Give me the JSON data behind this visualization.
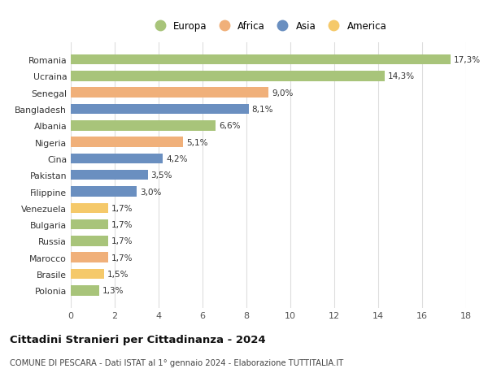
{
  "countries": [
    "Romania",
    "Ucraina",
    "Senegal",
    "Bangladesh",
    "Albania",
    "Nigeria",
    "Cina",
    "Pakistan",
    "Filippine",
    "Venezuela",
    "Bulgaria",
    "Russia",
    "Marocco",
    "Brasile",
    "Polonia"
  ],
  "values": [
    17.3,
    14.3,
    9.0,
    8.1,
    6.6,
    5.1,
    4.2,
    3.5,
    3.0,
    1.7,
    1.7,
    1.7,
    1.7,
    1.5,
    1.3
  ],
  "labels": [
    "17,3%",
    "14,3%",
    "9,0%",
    "8,1%",
    "6,6%",
    "5,1%",
    "4,2%",
    "3,5%",
    "3,0%",
    "1,7%",
    "1,7%",
    "1,7%",
    "1,7%",
    "1,5%",
    "1,3%"
  ],
  "continents": [
    "Europa",
    "Europa",
    "Africa",
    "Asia",
    "Europa",
    "Africa",
    "Asia",
    "Asia",
    "Asia",
    "America",
    "Europa",
    "Europa",
    "Africa",
    "America",
    "Europa"
  ],
  "colors": {
    "Europa": "#a8c47a",
    "Africa": "#f0b07a",
    "Asia": "#6a8fc0",
    "America": "#f5c96a"
  },
  "legend_order": [
    "Europa",
    "Africa",
    "Asia",
    "America"
  ],
  "xlim": [
    0,
    18
  ],
  "xticks": [
    0,
    2,
    4,
    6,
    8,
    10,
    12,
    14,
    16,
    18
  ],
  "title": "Cittadini Stranieri per Cittadinanza - 2024",
  "subtitle": "COMUNE DI PESCARA - Dati ISTAT al 1° gennaio 2024 - Elaborazione TUTTITALIA.IT",
  "bg_color": "#ffffff",
  "grid_color": "#dddddd"
}
